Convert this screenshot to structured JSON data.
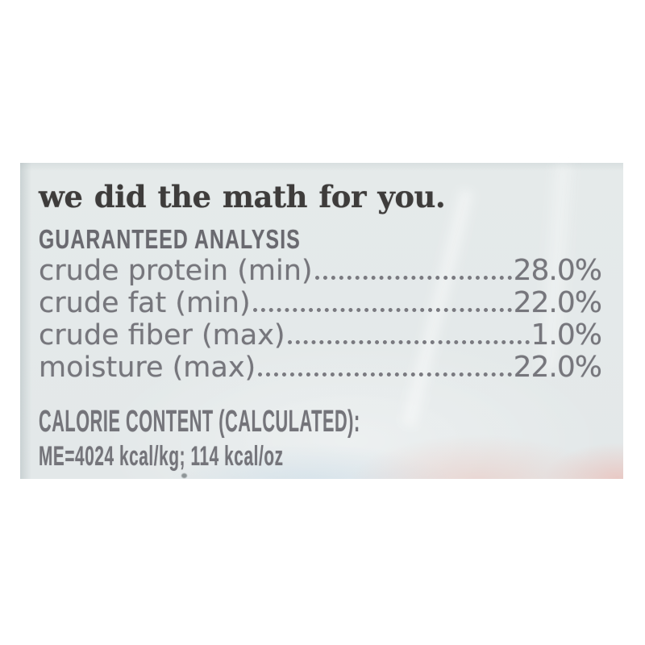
{
  "label": {
    "headline": "we did the math for you.",
    "guaranteed_analysis": {
      "title": "GUARANTEED ANALYSIS",
      "rows": [
        {
          "label": "crude protein (min)",
          "value": "28.0%"
        },
        {
          "label": "crude fat (min)",
          "value": "22.0%"
        },
        {
          "label": "crude fiber (max)",
          "value": "1.0%"
        },
        {
          "label": "moisture (max)",
          "value": "22.0%"
        }
      ]
    },
    "calorie_content": {
      "title": "CALORIE CONTENT (CALCULATED):",
      "value": "ME=4024 kcal/kg; 114 kcal/oz"
    },
    "colors": {
      "page_background": "#ffffff",
      "label_background": "#e5eaea",
      "headline_text": "#3e3c3b",
      "body_text": "#76767c",
      "reflection_pink": "#ecbab0",
      "reflection_blue": "#a5c8e1"
    }
  }
}
